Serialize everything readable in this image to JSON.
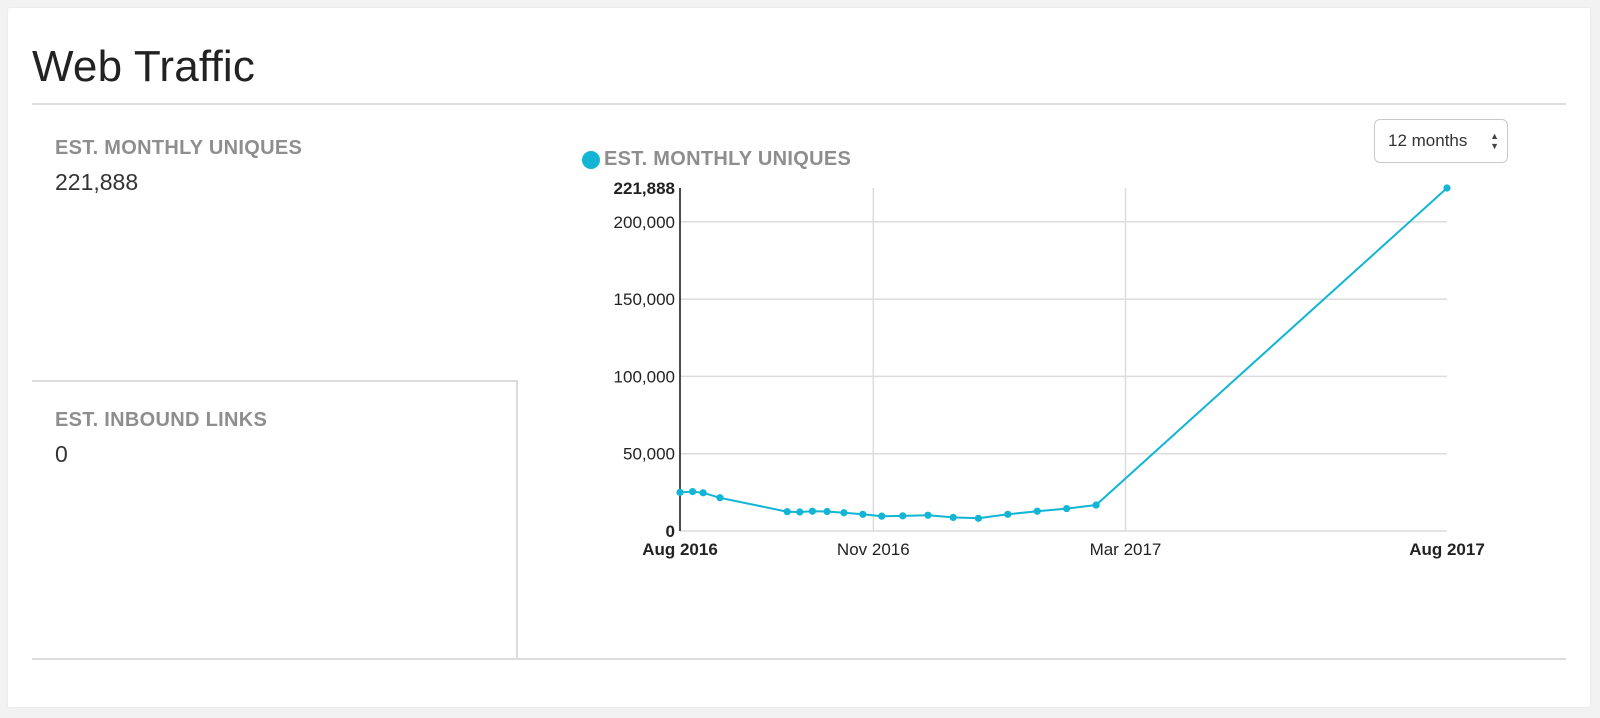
{
  "panel": {
    "title": "Web Traffic"
  },
  "stats": {
    "uniques": {
      "label": "EST. MONTHLY UNIQUES",
      "value": "221,888"
    },
    "inbound": {
      "label": "EST. INBOUND LINKS",
      "value": "0"
    }
  },
  "range_select": {
    "selected": "12 months"
  },
  "colors": {
    "series": "#12b5d4",
    "grid": "#dcdcdc"
  },
  "chart_data": {
    "type": "line",
    "legend_position": "top-left",
    "grid": true,
    "series": [
      {
        "name": "EST. MONTHLY UNIQUES",
        "points": [
          {
            "x": "2016-08-01",
            "y": 25000
          },
          {
            "x": "2016-08-07",
            "y": 25500
          },
          {
            "x": "2016-08-12",
            "y": 24700
          },
          {
            "x": "2016-08-20",
            "y": 21500
          },
          {
            "x": "2016-09-21",
            "y": 12500
          },
          {
            "x": "2016-09-27",
            "y": 12300
          },
          {
            "x": "2016-10-03",
            "y": 12800
          },
          {
            "x": "2016-10-10",
            "y": 12600
          },
          {
            "x": "2016-10-18",
            "y": 11800
          },
          {
            "x": "2016-10-27",
            "y": 10800
          },
          {
            "x": "2016-11-05",
            "y": 9600
          },
          {
            "x": "2016-11-15",
            "y": 9800
          },
          {
            "x": "2016-11-27",
            "y": 10200
          },
          {
            "x": "2016-12-09",
            "y": 8800
          },
          {
            "x": "2016-12-21",
            "y": 8200
          },
          {
            "x": "2017-01-04",
            "y": 10800
          },
          {
            "x": "2017-01-18",
            "y": 12800
          },
          {
            "x": "2017-02-01",
            "y": 14500
          },
          {
            "x": "2017-02-15",
            "y": 16800
          },
          {
            "x": "2017-08-01",
            "y": 221888
          }
        ]
      }
    ],
    "x_axis": {
      "range": [
        "2016-08-01",
        "2017-08-01"
      ],
      "ticks": [
        {
          "label": "Aug 2016",
          "x": "2016-08-01",
          "bold": true
        },
        {
          "label": "Nov 2016",
          "x": "2016-11-01",
          "bold": false
        },
        {
          "label": "Mar 2017",
          "x": "2017-03-01",
          "bold": false
        },
        {
          "label": "Aug 2017",
          "x": "2017-08-01",
          "bold": true
        }
      ]
    },
    "y_axis": {
      "range": [
        0,
        221888
      ],
      "ticks": [
        {
          "label": "0",
          "value": 0,
          "bold": true
        },
        {
          "label": "50,000",
          "value": 50000,
          "bold": false
        },
        {
          "label": "100,000",
          "value": 100000,
          "bold": false
        },
        {
          "label": "150,000",
          "value": 150000,
          "bold": false
        },
        {
          "label": "200,000",
          "value": 200000,
          "bold": false
        },
        {
          "label": "221,888",
          "value": 221888,
          "bold": true
        }
      ]
    }
  }
}
